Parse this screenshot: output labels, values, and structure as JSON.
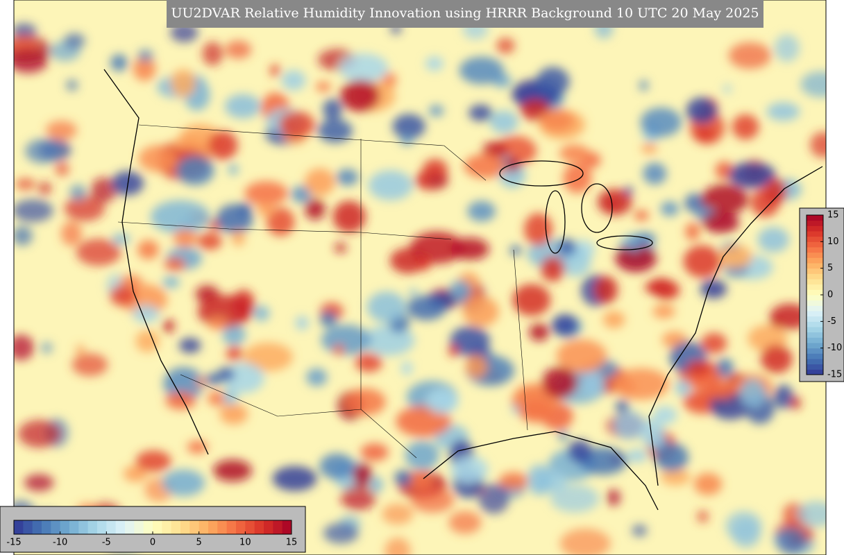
{
  "title": "UU2DVAR Relative Humidity Innovation using HRRR Background 10 UTC 20 May 2025",
  "colorbars": [
    {
      "orientation": "vertical",
      "lim": [
        -15,
        15
      ],
      "ticks": [
        15,
        10,
        5,
        0,
        -5,
        -10,
        -15
      ]
    },
    {
      "orientation": "horizontal",
      "lim": [
        -15,
        15
      ],
      "ticks": [
        -15,
        -10,
        -5,
        0,
        5,
        10,
        15
      ]
    }
  ],
  "colormap": [
    "#313695",
    "#4575b4",
    "#74add1",
    "#abd9e9",
    "#e0f3f8",
    "#ffffbf",
    "#fee090",
    "#fdae61",
    "#f46d43",
    "#d73027",
    "#a50026"
  ]
}
